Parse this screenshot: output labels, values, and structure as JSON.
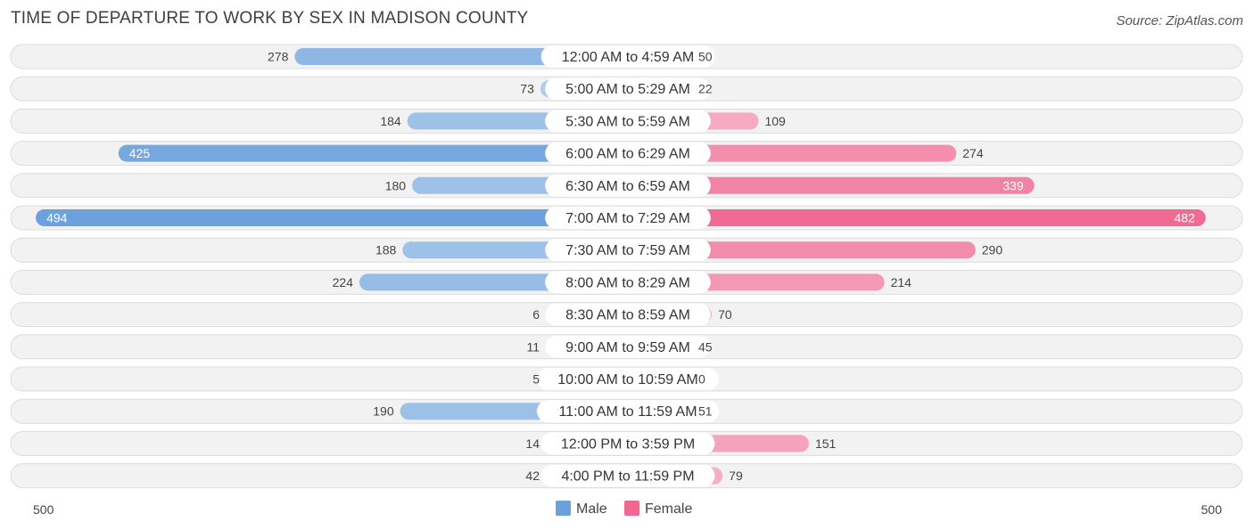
{
  "title": "TIME OF DEPARTURE TO WORK BY SEX IN MADISON COUNTY",
  "source": "Source: ZipAtlas.com",
  "chart_data": {
    "type": "bar",
    "orientation": "horizontal-diverging",
    "categories": [
      "12:00 AM to 4:59 AM",
      "5:00 AM to 5:29 AM",
      "5:30 AM to 5:59 AM",
      "6:00 AM to 6:29 AM",
      "6:30 AM to 6:59 AM",
      "7:00 AM to 7:29 AM",
      "7:30 AM to 7:59 AM",
      "8:00 AM to 8:29 AM",
      "8:30 AM to 8:59 AM",
      "9:00 AM to 9:59 AM",
      "10:00 AM to 10:59 AM",
      "11:00 AM to 11:59 AM",
      "12:00 PM to 3:59 PM",
      "4:00 PM to 11:59 PM"
    ],
    "series": [
      {
        "name": "Male",
        "color": "#6aa0dc",
        "values": [
          278,
          73,
          184,
          425,
          180,
          494,
          188,
          224,
          6,
          11,
          5,
          190,
          14,
          42
        ]
      },
      {
        "name": "Female",
        "color": "#f06892",
        "values": [
          50,
          22,
          109,
          274,
          339,
          482,
          290,
          214,
          70,
          45,
          0,
          51,
          151,
          79
        ]
      }
    ],
    "axis": {
      "left_label": "500",
      "right_label": "500",
      "max": 500
    },
    "legend": {
      "placement": "bottom-center"
    }
  }
}
